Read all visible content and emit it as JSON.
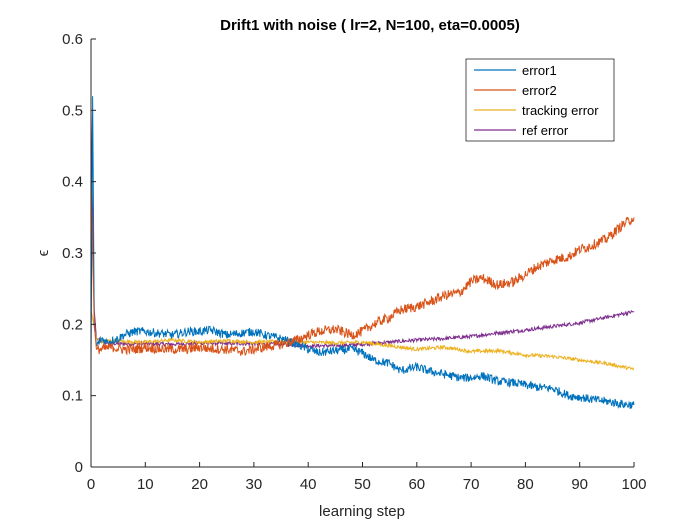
{
  "chart_data": {
    "type": "line",
    "title": "Drift1 with noise ( lr=2, N=100, eta=0.0005)",
    "xlabel": "learning step",
    "ylabel": "ϵ",
    "xlim": [
      0,
      100
    ],
    "ylim": [
      0,
      0.6
    ],
    "xticks": [
      "0",
      "10",
      "20",
      "30",
      "40",
      "50",
      "60",
      "70",
      "80",
      "90",
      "100"
    ],
    "yticks": [
      "0",
      "0.1",
      "0.2",
      "0.3",
      "0.4",
      "0.5",
      "0.6"
    ],
    "grid": false,
    "legend_position": "top-right",
    "series": [
      {
        "name": "error1",
        "color": "#0072BD",
        "x": [
          0,
          0.3,
          0.6,
          1,
          2,
          3,
          4,
          5,
          6,
          8,
          10,
          12,
          15,
          18,
          20,
          22,
          25,
          28,
          30,
          32,
          35,
          38,
          40,
          42,
          45,
          48,
          50,
          52,
          55,
          57,
          60,
          62,
          65,
          68,
          70,
          72,
          75,
          78,
          80,
          82,
          85,
          88,
          90,
          92,
          95,
          98,
          100
        ],
        "y": [
          0.14,
          0.52,
          0.2,
          0.17,
          0.18,
          0.175,
          0.178,
          0.18,
          0.185,
          0.19,
          0.19,
          0.188,
          0.185,
          0.19,
          0.19,
          0.192,
          0.185,
          0.188,
          0.19,
          0.185,
          0.18,
          0.172,
          0.165,
          0.16,
          0.163,
          0.165,
          0.16,
          0.15,
          0.145,
          0.135,
          0.14,
          0.135,
          0.13,
          0.125,
          0.125,
          0.128,
          0.12,
          0.118,
          0.115,
          0.112,
          0.11,
          0.1,
          0.098,
          0.095,
          0.092,
          0.088,
          0.087
        ]
      },
      {
        "name": "error2",
        "color": "#D95319",
        "x": [
          0,
          0.3,
          0.6,
          1,
          2,
          3,
          4,
          5,
          6,
          8,
          10,
          12,
          15,
          18,
          20,
          22,
          25,
          28,
          30,
          32,
          35,
          38,
          40,
          42,
          45,
          48,
          50,
          52,
          55,
          57,
          60,
          62,
          65,
          68,
          70,
          72,
          75,
          78,
          80,
          82,
          85,
          88,
          90,
          92,
          95,
          98,
          100
        ],
        "y": [
          0.4,
          0.3,
          0.2,
          0.165,
          0.165,
          0.167,
          0.168,
          0.166,
          0.165,
          0.165,
          0.168,
          0.166,
          0.165,
          0.165,
          0.168,
          0.166,
          0.165,
          0.162,
          0.165,
          0.168,
          0.172,
          0.178,
          0.185,
          0.19,
          0.193,
          0.185,
          0.19,
          0.2,
          0.21,
          0.22,
          0.225,
          0.23,
          0.24,
          0.245,
          0.26,
          0.265,
          0.255,
          0.26,
          0.27,
          0.28,
          0.29,
          0.295,
          0.305,
          0.31,
          0.32,
          0.34,
          0.35
        ]
      },
      {
        "name": "tracking error",
        "color": "#EDB120",
        "x": [
          0,
          0.5,
          1,
          2,
          4,
          6,
          10,
          15,
          20,
          25,
          30,
          35,
          40,
          45,
          50,
          55,
          60,
          65,
          70,
          75,
          80,
          85,
          90,
          95,
          100
        ],
        "y": [
          0.22,
          0.2,
          0.18,
          0.175,
          0.178,
          0.176,
          0.175,
          0.178,
          0.175,
          0.177,
          0.175,
          0.176,
          0.175,
          0.174,
          0.175,
          0.17,
          0.165,
          0.168,
          0.162,
          0.163,
          0.157,
          0.155,
          0.15,
          0.145,
          0.137
        ]
      },
      {
        "name": "ref error",
        "color": "#7E2F8E",
        "x": [
          0,
          0.3,
          0.6,
          1,
          2,
          4,
          6,
          10,
          15,
          20,
          25,
          30,
          35,
          40,
          45,
          50,
          55,
          60,
          65,
          70,
          75,
          80,
          85,
          90,
          95,
          100
        ],
        "y": [
          0.5,
          0.35,
          0.22,
          0.18,
          0.175,
          0.173,
          0.173,
          0.173,
          0.172,
          0.174,
          0.173,
          0.173,
          0.172,
          0.17,
          0.17,
          0.172,
          0.175,
          0.178,
          0.18,
          0.183,
          0.188,
          0.192,
          0.197,
          0.202,
          0.21,
          0.218
        ]
      }
    ]
  }
}
